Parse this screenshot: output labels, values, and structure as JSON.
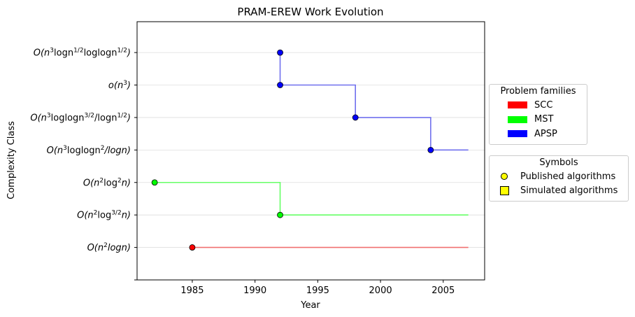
{
  "chart_data": {
    "type": "line",
    "title": "PRAM-EREW Work Evolution",
    "xlabel": "Year",
    "ylabel": "Complexity Class",
    "xlim": [
      1980.6,
      2008.3
    ],
    "x_ticks": [
      1985,
      1990,
      1995,
      2000,
      2005
    ],
    "ylim": [
      -1,
      6.95
    ],
    "categories": [
      "O(n²logn)",
      "O(n²log^{3/2}n)",
      "O(n²log²n)",
      "O(n³loglogn²/logn)",
      "O(n³loglogn^{3/2}/logn^{1/2})",
      "o(n³)",
      "O(n³logn^{1/2}loglogn^{1/2})"
    ],
    "y_tick_labels": [
      {
        "base": "O(n",
        "sup": "2",
        "rest": "logn)"
      },
      {
        "base": "O(n",
        "sup": "2",
        "mid": "log",
        "sup2": "3/2",
        "rest": "n)"
      },
      {
        "base": "O(n",
        "sup": "2",
        "mid": "log",
        "sup2": "2",
        "rest": "n)"
      },
      {
        "base": "O(n",
        "sup": "3",
        "mid": "loglogn",
        "sup2": "2",
        "rest": "/logn)"
      },
      {
        "base": "O(n",
        "sup": "3",
        "mid": "loglogn",
        "sup2": "3/2",
        "mid2": "/logn",
        "sup3": "1/2",
        "rest": ")"
      },
      {
        "base": "o(n",
        "sup": "3",
        "rest": ")"
      },
      {
        "base": "O(n",
        "sup": "3",
        "mid": "logn",
        "sup2": "1/2",
        "mid2": "loglogn",
        "sup3": "1/2",
        "rest": ")"
      }
    ],
    "grid": "horizontal",
    "series": [
      {
        "name": "SCC",
        "color": "#ff0000",
        "line_color": "#f07070",
        "end_x": 2007,
        "points": [
          {
            "x": 1985,
            "y": 0
          }
        ]
      },
      {
        "name": "MST",
        "color": "#00ff00",
        "line_color": "#66ff66",
        "end_x": 2007,
        "points": [
          {
            "x": 1982,
            "y": 2
          },
          {
            "x": 1992,
            "y": 1
          }
        ]
      },
      {
        "name": "APSP",
        "color": "#0000ff",
        "line_color": "#7070ee",
        "end_x": 2007,
        "points": [
          {
            "x": 1992,
            "y": 6
          },
          {
            "x": 1992,
            "y": 5
          },
          {
            "x": 1998,
            "y": 4
          },
          {
            "x": 2004,
            "y": 3
          }
        ]
      }
    ],
    "legends": {
      "families": {
        "title": "Problem families",
        "items": [
          {
            "label": "SCC",
            "color": "#ff0000"
          },
          {
            "label": "MST",
            "color": "#00ff00"
          },
          {
            "label": "APSP",
            "color": "#0000ff"
          }
        ]
      },
      "symbols": {
        "title": "Symbols",
        "items": [
          {
            "label": "Published algorithms",
            "marker": "circle"
          },
          {
            "label": "Simulated algorithms",
            "marker": "square"
          }
        ]
      },
      "placement": "outside-right"
    }
  }
}
